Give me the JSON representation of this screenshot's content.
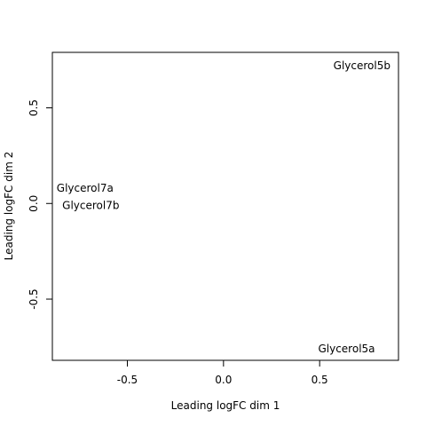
{
  "chart_data": {
    "type": "scatter",
    "title": "",
    "xlabel": "Leading logFC dim 1",
    "ylabel": "Leading logFC dim 2",
    "xlim": [
      -0.89,
      0.91
    ],
    "ylim": [
      -0.82,
      0.79
    ],
    "x_ticks": [
      {
        "value": -0.5,
        "label": "-0.5"
      },
      {
        "value": 0.0,
        "label": "0.0"
      },
      {
        "value": 0.5,
        "label": "0.5"
      }
    ],
    "y_ticks": [
      {
        "value": -0.5,
        "label": "-0.5"
      },
      {
        "value": 0.0,
        "label": "0.0"
      },
      {
        "value": 0.5,
        "label": "0.5"
      }
    ],
    "points": [
      {
        "label": "Glycerol5b",
        "x": 0.72,
        "y": 0.72
      },
      {
        "label": "Glycerol7a",
        "x": -0.72,
        "y": 0.08
      },
      {
        "label": "Glycerol7b",
        "x": -0.69,
        "y": -0.01
      },
      {
        "label": "Glycerol5a",
        "x": 0.64,
        "y": -0.76
      }
    ],
    "grid": false,
    "legend": "none"
  }
}
